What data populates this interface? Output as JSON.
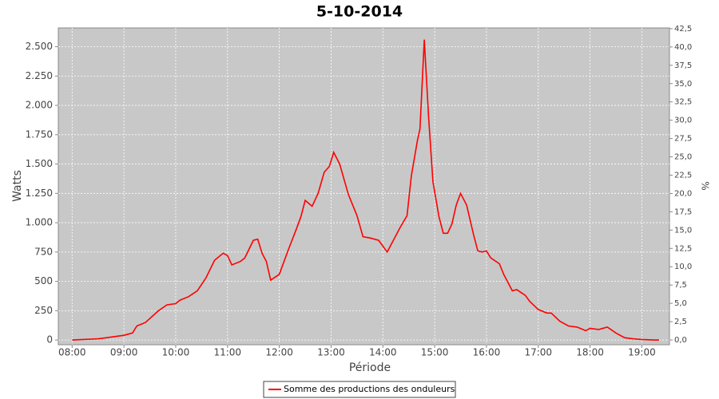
{
  "chart_data": {
    "type": "line",
    "title": "5-10-2014",
    "x_label": "Période",
    "y_label": "Watts",
    "y2_label": "%",
    "x": [
      "08:00",
      "08:30",
      "08:50",
      "09:00",
      "09:10",
      "09:15",
      "09:25",
      "09:40",
      "09:50",
      "10:00",
      "10:05",
      "10:15",
      "10:25",
      "10:35",
      "10:45",
      "10:55",
      "11:00",
      "11:05",
      "11:15",
      "11:20",
      "11:30",
      "11:35",
      "11:40",
      "11:45",
      "11:50",
      "12:00",
      "12:10",
      "12:20",
      "12:25",
      "12:30",
      "12:38",
      "12:45",
      "12:52",
      "12:58",
      "13:03",
      "13:10",
      "13:20",
      "13:30",
      "13:37",
      "13:45",
      "13:55",
      "14:05",
      "14:10",
      "14:20",
      "14:28",
      "14:33",
      "14:40",
      "14:43",
      "14:48",
      "14:53",
      "14:58",
      "15:05",
      "15:10",
      "15:15",
      "15:20",
      "15:25",
      "15:30",
      "15:37",
      "15:45",
      "15:50",
      "15:55",
      "16:00",
      "16:05",
      "16:15",
      "16:20",
      "16:30",
      "16:35",
      "16:45",
      "16:50",
      "17:00",
      "17:10",
      "17:15",
      "17:25",
      "17:35",
      "17:45",
      "17:55",
      "18:00",
      "18:10",
      "18:20",
      "18:30",
      "18:40",
      "18:50",
      "19:00",
      "19:15",
      "19:20"
    ],
    "series": [
      {
        "name": "Somme des productions des onduleurs",
        "color": "#ff0000",
        "values": [
          0,
          10,
          30,
          40,
          60,
          120,
          150,
          250,
          300,
          310,
          340,
          370,
          420,
          530,
          680,
          740,
          720,
          640,
          670,
          700,
          850,
          860,
          740,
          670,
          510,
          560,
          760,
          950,
          1050,
          1190,
          1140,
          1250,
          1430,
          1480,
          1600,
          1500,
          1240,
          1060,
          880,
          870,
          850,
          750,
          820,
          960,
          1060,
          1400,
          1700,
          1800,
          2560,
          1900,
          1350,
          1050,
          910,
          910,
          990,
          1150,
          1250,
          1150,
          900,
          760,
          750,
          760,
          700,
          650,
          560,
          420,
          430,
          380,
          330,
          260,
          230,
          230,
          160,
          120,
          110,
          80,
          100,
          90,
          110,
          60,
          20,
          10,
          5,
          0,
          0
        ]
      }
    ],
    "xlim": [
      "07:44",
      "19:32"
    ],
    "xticks": [
      "08:00",
      "09:00",
      "10:00",
      "11:00",
      "12:00",
      "13:00",
      "14:00",
      "15:00",
      "16:00",
      "17:00",
      "18:00",
      "19:00"
    ],
    "ylim": [
      -40,
      2660
    ],
    "yticks": [
      0,
      250,
      500,
      750,
      {
        "value": 1000,
        "label": "1.000"
      },
      {
        "value": 1250,
        "label": "1.250"
      },
      {
        "value": 1500,
        "label": "1.500"
      },
      {
        "value": 1750,
        "label": "1.750"
      },
      {
        "value": 2000,
        "label": "2.000"
      },
      {
        "value": 2250,
        "label": "2.250"
      },
      {
        "value": 2500,
        "label": "2.500"
      }
    ],
    "y2lim": [
      -0.65,
      42.6
    ],
    "y2ticks": [
      {
        "value": 0,
        "label": "0,0"
      },
      {
        "value": 2.5,
        "label": "2,5"
      },
      {
        "value": 5,
        "label": "5,0"
      },
      {
        "value": 7.5,
        "label": "7,5"
      },
      {
        "value": 10,
        "label": "10,0"
      },
      {
        "value": 12.5,
        "label": "12,5"
      },
      {
        "value": 15,
        "label": "15,0"
      },
      {
        "value": 17.5,
        "label": "17,5"
      },
      {
        "value": 20,
        "label": "20,0"
      },
      {
        "value": 22.5,
        "label": "22,5"
      },
      {
        "value": 25,
        "label": "25,0"
      },
      {
        "value": 27.5,
        "label": "27,5"
      },
      {
        "value": 30,
        "label": "30,0"
      },
      {
        "value": 32.5,
        "label": "32,5"
      },
      {
        "value": 35,
        "label": "35,0"
      },
      {
        "value": 37.5,
        "label": "37,5"
      },
      {
        "value": 40,
        "label": "40,0"
      },
      {
        "value": 42.5,
        "label": "42,5"
      }
    ],
    "grid": true
  }
}
